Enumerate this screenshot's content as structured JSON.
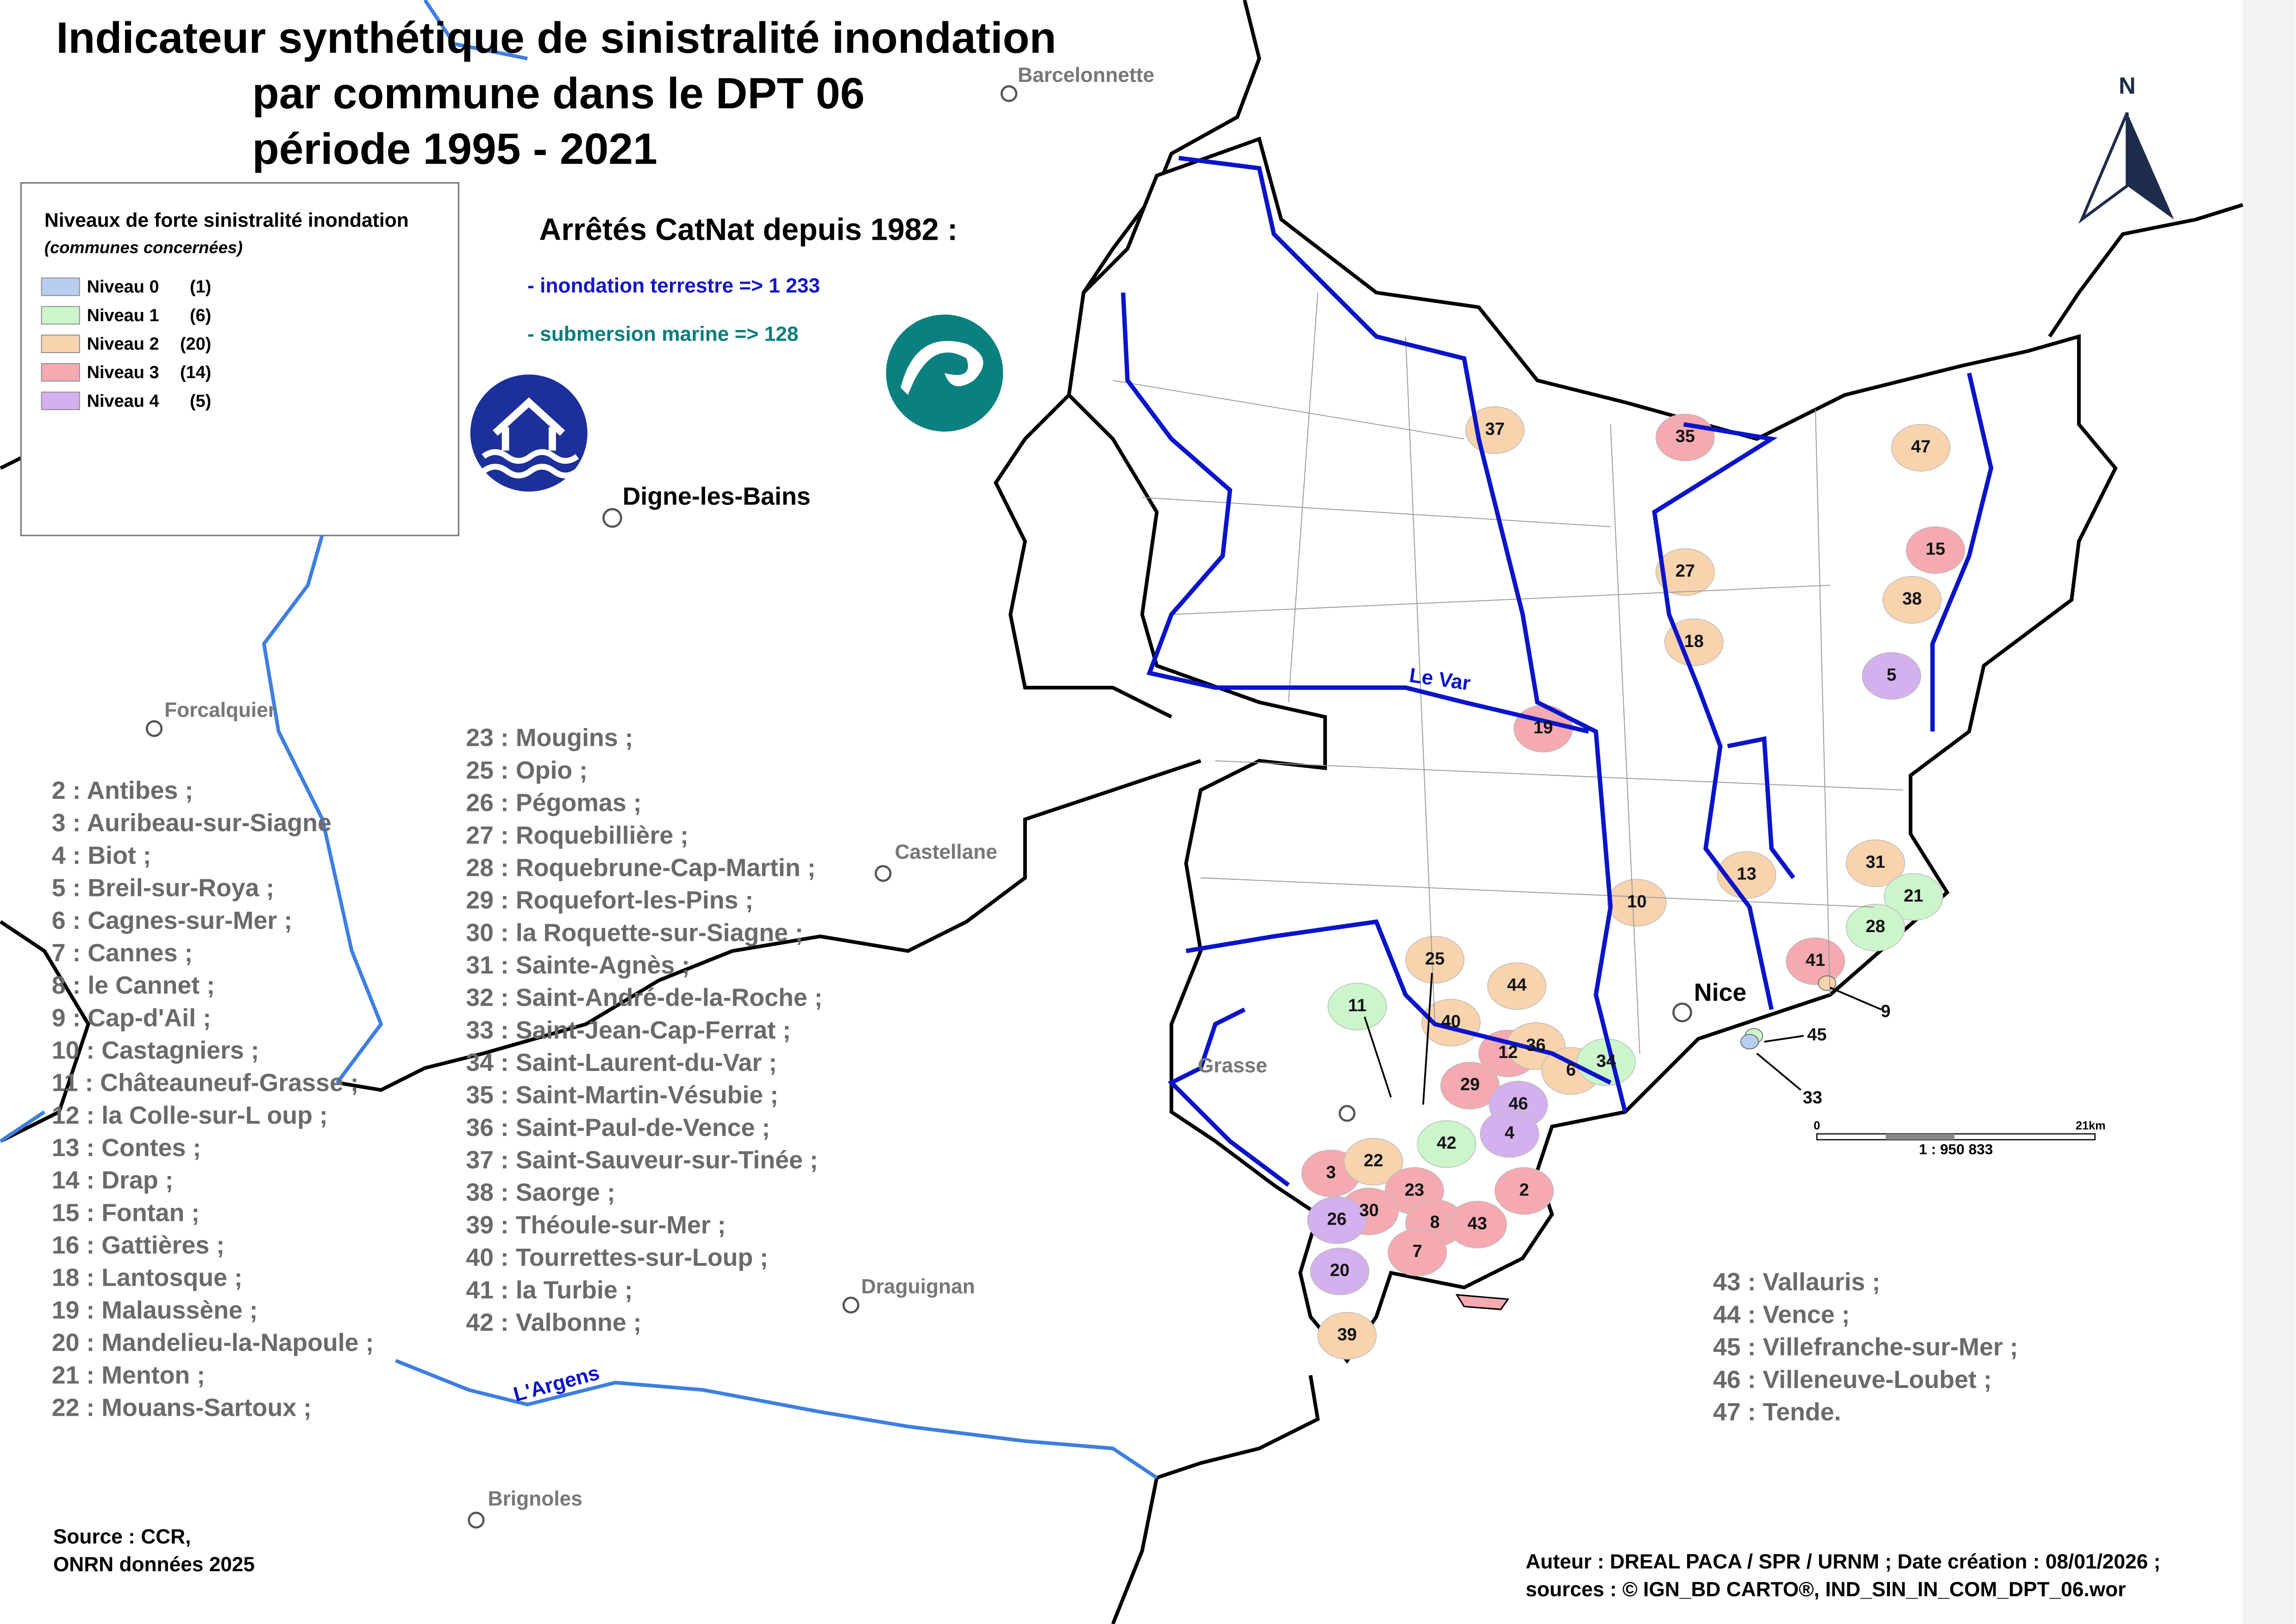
{
  "title": [
    "Indicateur synthétique de sinistralité inondation",
    "par commune dans le DPT 06",
    "période 1995 - 2021"
  ],
  "legend": {
    "title": "Niveaux de forte sinistralité inondation",
    "subtitle": "(communes concernées)",
    "items": [
      {
        "label": "Niveau 0",
        "count": "(1)",
        "color": "#b8cdf2"
      },
      {
        "label": "Niveau 1",
        "count": "(6)",
        "color": "#ccf5cc"
      },
      {
        "label": "Niveau 2",
        "count": "(20)",
        "color": "#f8d3ad"
      },
      {
        "label": "Niveau 3",
        "count": "(14)",
        "color": "#f4aab0"
      },
      {
        "label": "Niveau 4",
        "count": "(5)",
        "color": "#d4b0ee"
      }
    ]
  },
  "catnat": {
    "heading": "Arrêtés CatNat depuis 1982 :",
    "lines": [
      {
        "text": "- inondation terrestre => 1 233",
        "color": "#1414c8"
      },
      {
        "text": "- submersion marine => 128",
        "color": "#0a7d7d"
      }
    ]
  },
  "places": [
    "Barcelonnette",
    "Digne-les-Bains",
    "Forcalquier",
    "Castellane",
    "Grasse",
    "Nice",
    "Draguignan",
    "Brignoles"
  ],
  "rivers": [
    "Le Var",
    "L'Argens"
  ],
  "north": "N",
  "map_labels": [
    {
      "text": "37",
      "color": "#f8d3ad"
    },
    {
      "text": "35",
      "color": "#f4aab0"
    },
    {
      "text": "47",
      "color": "#f8d3ad"
    },
    {
      "text": "15",
      "color": "#f4aab0"
    },
    {
      "text": "27",
      "color": "#f8d3ad"
    },
    {
      "text": "38",
      "color": "#f8d3ad"
    },
    {
      "text": "18",
      "color": "#f8d3ad"
    },
    {
      "text": "5",
      "color": "#d4b0ee"
    },
    {
      "text": "19",
      "color": "#f4aab0"
    },
    {
      "text": "31",
      "color": "#f8d3ad"
    },
    {
      "text": "21",
      "color": "#ccf5cc"
    },
    {
      "text": "13",
      "color": "#f8d3ad"
    },
    {
      "text": "10",
      "color": "#f8d3ad"
    },
    {
      "text": "28",
      "color": "#ccf5cc"
    },
    {
      "text": "25",
      "color": "#f8d3ad"
    },
    {
      "text": "41",
      "color": "#f4aab0"
    },
    {
      "text": "44",
      "color": "#f8d3ad"
    },
    {
      "text": "11",
      "color": "#ccf5cc"
    },
    {
      "text": "9",
      "color": "#f8d3ad"
    },
    {
      "text": "40",
      "color": "#f8d3ad"
    },
    {
      "text": "45",
      "color": "#ccf5cc"
    },
    {
      "text": "12",
      "color": "#f4aab0"
    },
    {
      "text": "36",
      "color": "#f8d3ad"
    },
    {
      "text": "6",
      "color": "#f8d3ad"
    },
    {
      "text": "34",
      "color": "#ccf5cc"
    },
    {
      "text": "29",
      "color": "#f4aab0"
    },
    {
      "text": "46",
      "color": "#d4b0ee"
    },
    {
      "text": "33",
      "color": "#b8cdf2"
    },
    {
      "text": "42",
      "color": "#ccf5cc"
    },
    {
      "text": "4",
      "color": "#d4b0ee"
    },
    {
      "text": "3",
      "color": "#f4aab0"
    },
    {
      "text": "22",
      "color": "#f8d3ad"
    },
    {
      "text": "23",
      "color": "#f4aab0"
    },
    {
      "text": "2",
      "color": "#f4aab0"
    },
    {
      "text": "30",
      "color": "#f4aab0"
    },
    {
      "text": "26",
      "color": "#d4b0ee"
    },
    {
      "text": "8",
      "color": "#f4aab0"
    },
    {
      "text": "43",
      "color": "#f4aab0"
    },
    {
      "text": "7",
      "color": "#f4aab0"
    },
    {
      "text": "20",
      "color": "#d4b0ee"
    },
    {
      "text": "39",
      "color": "#f8d3ad"
    }
  ],
  "communes": [
    [
      "2 : Antibes ;",
      "3 : Auribeau-sur-Siagne",
      "4 : Biot ;",
      "5 : Breil-sur-Roya ;",
      "6 : Cagnes-sur-Mer ;",
      "7 : Cannes ;",
      "8 : le Cannet ;",
      "9 : Cap-d'Ail ;",
      "10 : Castagniers ;",
      "11 : Châteauneuf-Grasse ;",
      "12 : la Colle-sur-L oup ;",
      "13 : Contes ;",
      "14 : Drap ;",
      "15 : Fontan ;",
      "16 : Gattières ;",
      "18 : Lantosque ;",
      "19 : Malaussène ;",
      "20 : Mandelieu-la-Napoule ;",
      "21 : Menton ;",
      "22 : Mouans-Sartoux ;"
    ],
    [
      "23 : Mougins ;",
      "25 : Opio ;",
      "26 : Pégomas ;",
      "27 : Roquebillière ;",
      "28 : Roquebrune-Cap-Martin ;",
      "29 : Roquefort-les-Pins ;",
      "30 : la Roquette-sur-Siagne ;",
      "31 : Sainte-Agnès ;",
      "32 : Saint-André-de-la-Roche ;",
      "33 : Saint-Jean-Cap-Ferrat ;",
      "34 : Saint-Laurent-du-Var ;",
      "35 : Saint-Martin-Vésubie ;",
      "36 : Saint-Paul-de-Vence ;",
      "37 : Saint-Sauveur-sur-Tinée ;",
      "38 : Saorge ;",
      "39 : Théoule-sur-Mer ;",
      "40 : Tourrettes-sur-Loup ;",
      "41 : la Turbie ;",
      "42 : Valbonne ;"
    ],
    [
      "43 : Vallauris ;",
      "44 : Vence ;",
      "45 : Villefranche-sur-Mer ;",
      "46 : Villeneuve-Loubet ;",
      "47 : Tende."
    ]
  ],
  "scale": {
    "start": "0",
    "end": "21km",
    "ratio": "1 :  950 833"
  },
  "source": [
    "Source : CCR,",
    "ONRN données 2025"
  ],
  "credits": [
    "Auteur : DREAL PACA / SPR / URNM ; Date création : 08/01/2026  ;",
    "sources : © IGN_BD CARTO®, IND_SIN_IN_COM_DPT_06.wor"
  ]
}
